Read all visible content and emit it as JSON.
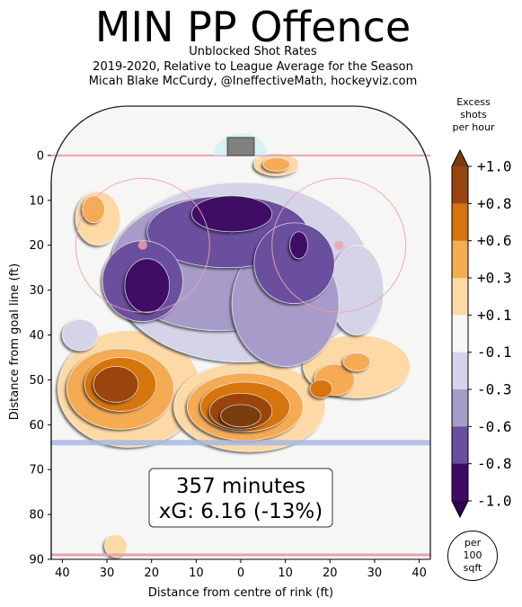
{
  "title": "MIN PP Offence",
  "subtitle_lines": [
    "Unblocked Shot Rates",
    "2019-2020, Relative to League Average for the Season",
    "Micah Blake McCurdy, @IneffectiveMath, hockeyviz.com"
  ],
  "colorbar_title_lines": [
    "Excess",
    "shots",
    "per hour"
  ],
  "per_label_lines": [
    "per",
    "100",
    "sqft"
  ],
  "info_box": {
    "minutes": "357 minutes",
    "xg": "xG: 6.16 (-13%)"
  },
  "colors": {
    "rink_bg": "#f6f6f4",
    "bin_neg": [
      "#3f0a66",
      "#6a4f9e",
      "#a79bc9",
      "#d4d3e8"
    ],
    "neutral": "#f6f6f4",
    "bin_pos": [
      "#fdd9a6",
      "#f5ab52",
      "#d6740f",
      "#994510",
      "#7a3c0d"
    ],
    "red_line": "#e8a0b0",
    "blue_line": "#a8b8e0"
  },
  "chart_data": {
    "type": "heatmap",
    "xlabel": "Distance from centre of rink (ft)",
    "ylabel": "Distance from goal line (ft)",
    "xlim": [
      -42.5,
      42.5
    ],
    "ylim": [
      90,
      -11
    ],
    "x_ticks": [
      40,
      30,
      20,
      10,
      0,
      10,
      20,
      30,
      40
    ],
    "y_ticks": [
      0,
      10,
      20,
      30,
      40,
      50,
      60,
      70,
      80,
      90
    ],
    "colorbar_ticks": [
      "+1.0",
      "+0.8",
      "+0.6",
      "+0.3",
      "+0.1",
      "-0.1",
      "-0.3",
      "-0.6",
      "-0.8",
      "-1.0"
    ],
    "regions": [
      {
        "level": 1,
        "x": -32,
        "y": 14,
        "rx": 5,
        "ry": 6
      },
      {
        "level": 2,
        "x": -33,
        "y": 12,
        "rx": 2.5,
        "ry": 3
      },
      {
        "level": 1,
        "x": 8,
        "y": 2,
        "rx": 5,
        "ry": 2.5
      },
      {
        "level": 2,
        "x": 8,
        "y": 2,
        "rx": 3,
        "ry": 1.5
      },
      {
        "level": 1,
        "x": -25,
        "y": 52,
        "rx": 16,
        "ry": 13
      },
      {
        "level": 2,
        "x": -27,
        "y": 52,
        "rx": 12,
        "ry": 9
      },
      {
        "level": 3,
        "x": -27,
        "y": 51,
        "rx": 8,
        "ry": 6
      },
      {
        "level": 4,
        "x": -28,
        "y": 51,
        "rx": 5,
        "ry": 4
      },
      {
        "level": 1,
        "x": 2,
        "y": 56,
        "rx": 17,
        "ry": 10
      },
      {
        "level": 2,
        "x": 1,
        "y": 56,
        "rx": 13,
        "ry": 7.5
      },
      {
        "level": 3,
        "x": 1,
        "y": 56,
        "rx": 10,
        "ry": 5.5
      },
      {
        "level": 4,
        "x": 0,
        "y": 57,
        "rx": 7,
        "ry": 4
      },
      {
        "level": 5,
        "x": 0,
        "y": 58,
        "rx": 4.5,
        "ry": 2.5
      },
      {
        "level": 1,
        "x": 26,
        "y": 47,
        "rx": 12,
        "ry": 7
      },
      {
        "level": 2,
        "x": 21,
        "y": 50,
        "rx": 4.5,
        "ry": 3.5
      },
      {
        "level": 2,
        "x": 26,
        "y": 46,
        "rx": 3,
        "ry": 2
      },
      {
        "level": 3,
        "x": 18,
        "y": 52,
        "rx": 2.5,
        "ry": 2
      },
      {
        "level": 1,
        "x": -28,
        "y": 87,
        "rx": 2.5,
        "ry": 2.5
      },
      {
        "level": -1,
        "x": 0,
        "y": 26,
        "rx": 29,
        "ry": 20
      },
      {
        "level": -1,
        "x": -36,
        "y": 40,
        "rx": 4,
        "ry": 3.5
      },
      {
        "level": -1,
        "x": 26,
        "y": 30,
        "rx": 6,
        "ry": 10
      },
      {
        "level": -2,
        "x": -5,
        "y": 24,
        "rx": 24,
        "ry": 15
      },
      {
        "level": -2,
        "x": 10,
        "y": 33,
        "rx": 12,
        "ry": 14
      },
      {
        "level": -3,
        "x": -3,
        "y": 17,
        "rx": 18,
        "ry": 8
      },
      {
        "level": -3,
        "x": -22,
        "y": 28,
        "rx": 9,
        "ry": 9
      },
      {
        "level": -3,
        "x": 12,
        "y": 24,
        "rx": 9,
        "ry": 9
      },
      {
        "level": -4,
        "x": -2,
        "y": 13,
        "rx": 9,
        "ry": 4
      },
      {
        "level": -4,
        "x": -21,
        "y": 29,
        "rx": 5,
        "ry": 6
      },
      {
        "level": -4,
        "x": 13,
        "y": 20,
        "rx": 2,
        "ry": 3
      }
    ]
  }
}
